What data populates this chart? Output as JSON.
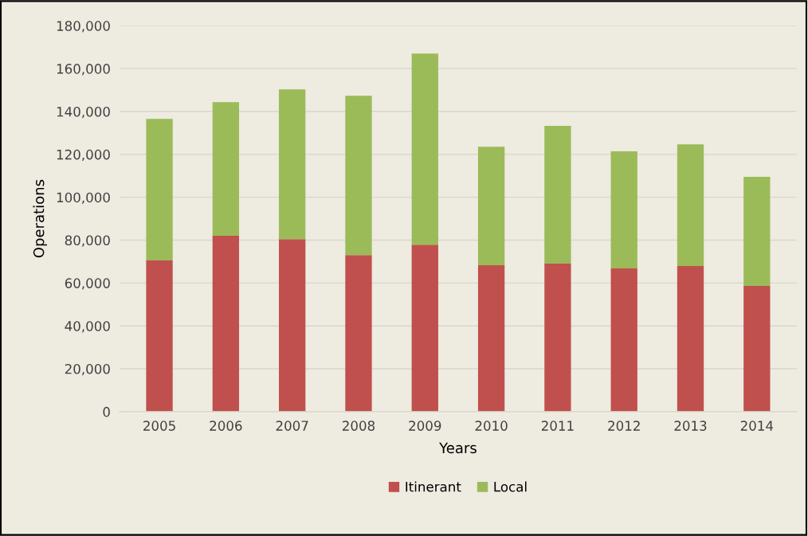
{
  "chart_data": {
    "type": "bar",
    "stacked": true,
    "xlabel": "Years",
    "ylabel": "Operations",
    "categories": [
      "2005",
      "2006",
      "2007",
      "2008",
      "2009",
      "2010",
      "2011",
      "2012",
      "2013",
      "2014"
    ],
    "series": [
      {
        "name": "Itinerant",
        "color": "#c0504d",
        "values": [
          70500,
          82000,
          80500,
          73000,
          77900,
          68300,
          69000,
          66800,
          67900,
          58600
        ]
      },
      {
        "name": "Local",
        "color": "#9bbb59",
        "values": [
          66100,
          62400,
          69800,
          74300,
          89100,
          55300,
          64300,
          54600,
          56800,
          50900
        ]
      }
    ],
    "ylim": [
      0,
      180000
    ],
    "yticks": [
      {
        "value": 0,
        "label": "0"
      },
      {
        "value": 20000,
        "label": "20,000"
      },
      {
        "value": 40000,
        "label": "40,000"
      },
      {
        "value": 60000,
        "label": "60,000"
      },
      {
        "value": 80000,
        "label": "80,000"
      },
      {
        "value": 100000,
        "label": "100,000"
      },
      {
        "value": 120000,
        "label": "120,000"
      },
      {
        "value": 140000,
        "label": "140,000"
      },
      {
        "value": 160000,
        "label": "160,000"
      },
      {
        "value": 180000,
        "label": "180,000"
      }
    ],
    "grid": "y",
    "legend": "bottom"
  }
}
